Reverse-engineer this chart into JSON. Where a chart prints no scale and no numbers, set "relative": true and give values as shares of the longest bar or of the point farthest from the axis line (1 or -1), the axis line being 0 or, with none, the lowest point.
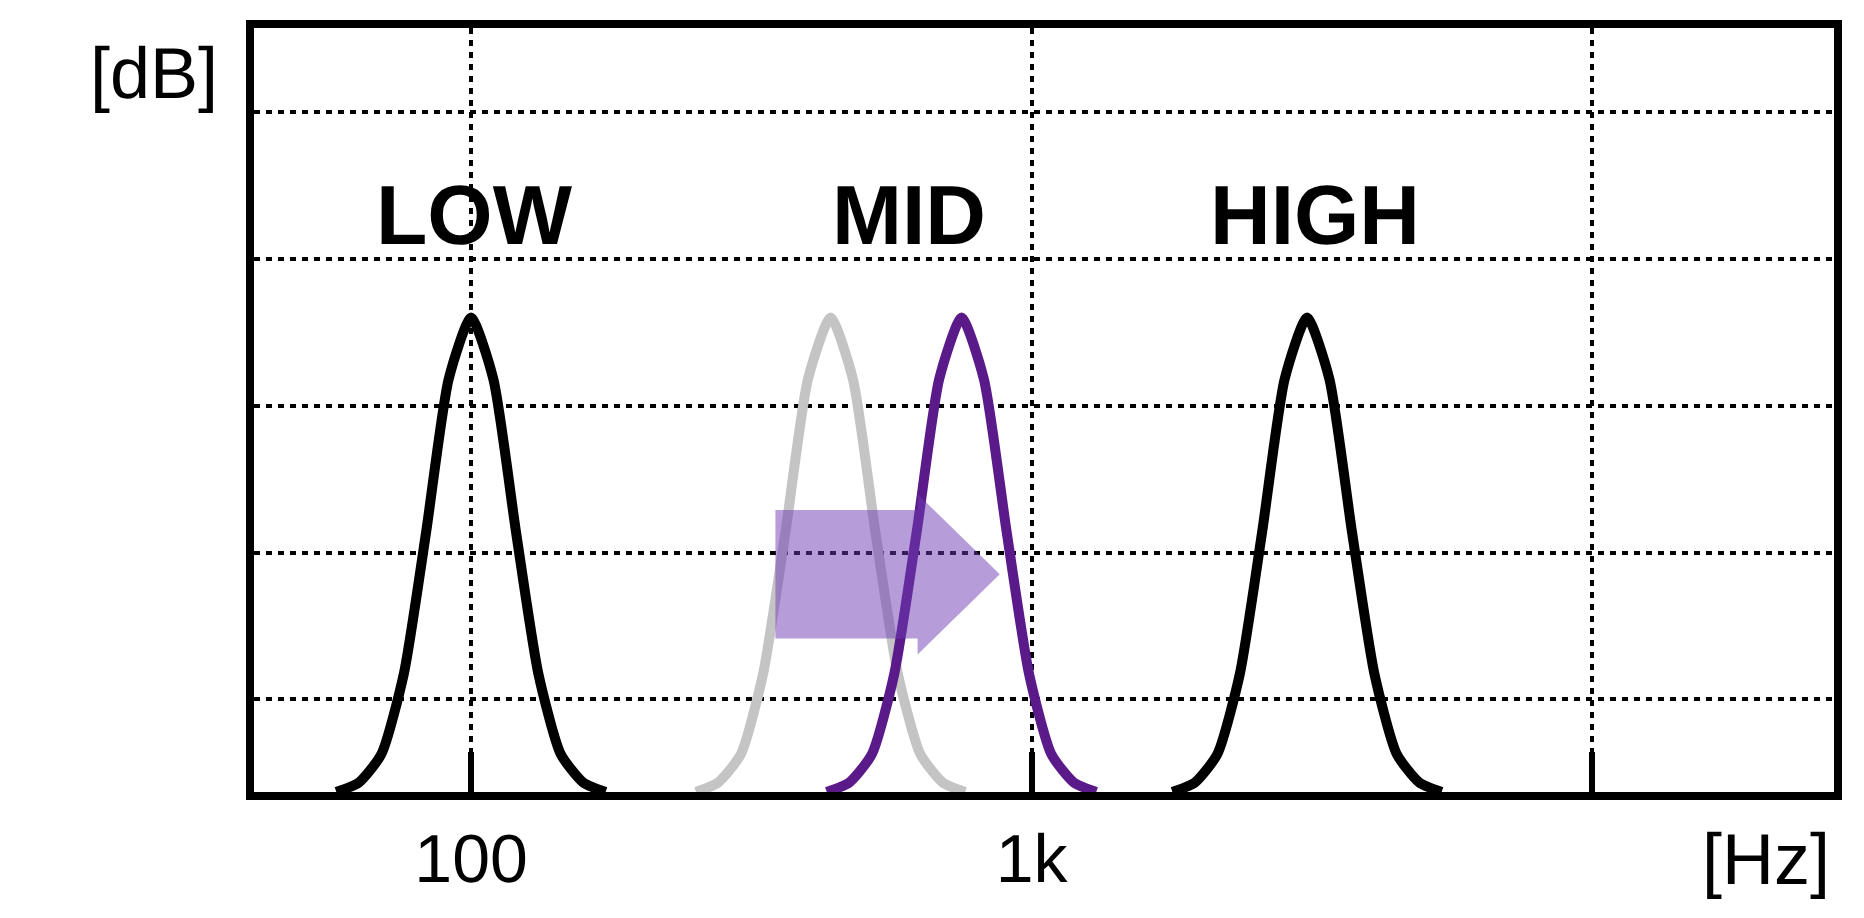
{
  "chart_data": {
    "type": "line",
    "relative": true,
    "xlabel": "[Hz]",
    "ylabel": "[dB]",
    "log": "x",
    "grid": true,
    "marker": "none",
    "line_style": "solid",
    "xlim": [
      41,
      27000
    ],
    "xticks": [
      100,
      {
        "value": 1000,
        "label": "1k"
      },
      {
        "value": 10000,
        "label": null
      }
    ],
    "series": [
      {
        "color": "#000000",
        "x": [
          57.5,
          63.1,
          69.2,
          75.9,
          83.2,
          91.2,
          100,
          109.6,
          120.2,
          131.8,
          144.5,
          158.5,
          173.8
        ],
        "values": [
          0,
          0.02,
          0.08,
          0.25,
          0.55,
          0.87,
          1,
          0.87,
          0.55,
          0.25,
          0.08,
          0.02,
          0
        ]
      },
      {
        "color": "#c4c4c4",
        "x": [
          252,
          276,
          303,
          332,
          364,
          399,
          438,
          480,
          526,
          577,
          633,
          694,
          761
        ],
        "values": [
          0,
          0.02,
          0.08,
          0.25,
          0.55,
          0.87,
          1,
          0.87,
          0.55,
          0.25,
          0.08,
          0.02,
          0
        ]
      },
      {
        "color": "#5b1a8a",
        "x": [
          431,
          473,
          519,
          569,
          624,
          684,
          750,
          822,
          902,
          989,
          1084,
          1189,
          1304
        ],
        "values": [
          0,
          0.02,
          0.08,
          0.25,
          0.55,
          0.87,
          1,
          0.87,
          0.55,
          0.25,
          0.08,
          0.02,
          0
        ]
      },
      {
        "color": "#000000",
        "x": [
          1783,
          1956,
          2145,
          2353,
          2579,
          2827,
          3100,
          3398,
          3726,
          4086,
          4480,
          4914,
          5388
        ],
        "values": [
          0,
          0.02,
          0.08,
          0.25,
          0.55,
          0.87,
          1,
          0.87,
          0.55,
          0.25,
          0.08,
          0.02,
          0
        ]
      }
    ],
    "annotations": [
      "LOW",
      "MID",
      "HIGH"
    ]
  }
}
